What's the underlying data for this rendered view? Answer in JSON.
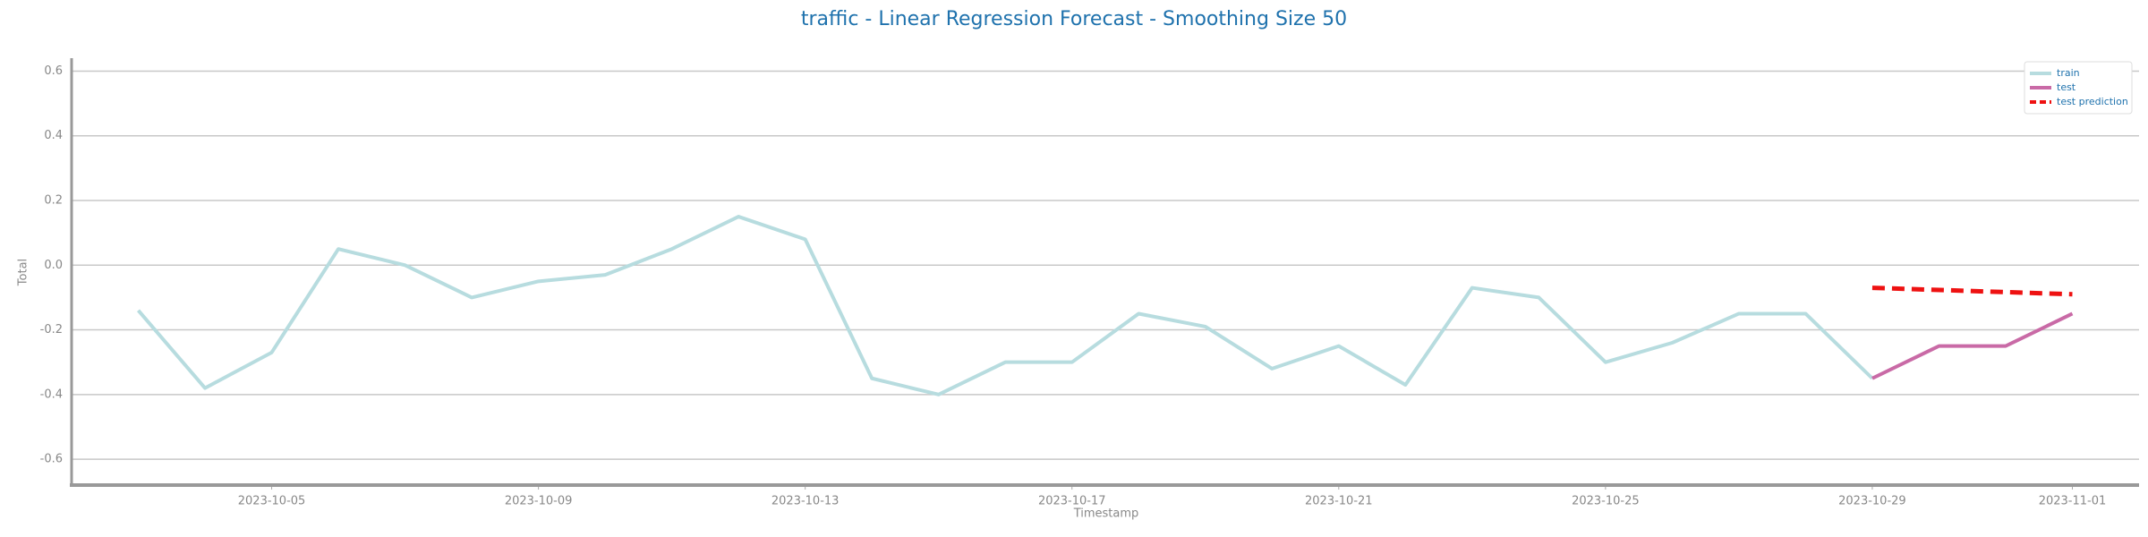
{
  "chart_data": {
    "type": "line",
    "title": "traffic - Linear Regression Forecast - Smoothing Size 50",
    "x_label": "Timestamp",
    "y_label": "Total",
    "series": [
      {
        "name": "train",
        "color": "#b7dcdf",
        "dash": false,
        "x": [
          "2023-10-03",
          "2023-10-04",
          "2023-10-05",
          "2023-10-06",
          "2023-10-07",
          "2023-10-08",
          "2023-10-09",
          "2023-10-10",
          "2023-10-11",
          "2023-10-12",
          "2023-10-13",
          "2023-10-14",
          "2023-10-15",
          "2023-10-16",
          "2023-10-17",
          "2023-10-18",
          "2023-10-19",
          "2023-10-20",
          "2023-10-21",
          "2023-10-22",
          "2023-10-23",
          "2023-10-24",
          "2023-10-25",
          "2023-10-26",
          "2023-10-27",
          "2023-10-28",
          "2023-10-29"
        ],
        "values": [
          -0.14,
          -0.38,
          -0.27,
          0.05,
          0.0,
          -0.1,
          -0.05,
          -0.03,
          0.05,
          0.15,
          0.08,
          -0.35,
          -0.4,
          -0.3,
          -0.3,
          -0.15,
          -0.19,
          -0.32,
          -0.25,
          -0.37,
          -0.07,
          -0.1,
          -0.3,
          -0.24,
          -0.15,
          -0.15,
          -0.35
        ]
      },
      {
        "name": "test",
        "color": "#c96aa6",
        "dash": false,
        "x": [
          "2023-10-29",
          "2023-10-30",
          "2023-10-31",
          "2023-11-01"
        ],
        "values": [
          -0.35,
          -0.25,
          -0.25,
          -0.15
        ]
      },
      {
        "name": "test prediction",
        "color": "#ee1111",
        "dash": true,
        "x": [
          "2023-10-29",
          "2023-11-01"
        ],
        "values": [
          -0.07,
          -0.09
        ]
      }
    ],
    "xlim": [
      "2023-10-02",
      "2023-11-02"
    ],
    "xticks": [
      "2023-10-05",
      "2023-10-09",
      "2023-10-13",
      "2023-10-17",
      "2023-10-21",
      "2023-10-25",
      "2023-10-29",
      "2023-11-01"
    ],
    "ylim": [
      -0.68,
      0.64
    ],
    "yticks": [
      -0.6,
      -0.4,
      -0.2,
      {
        "value": 0,
        "label": "0.0"
      },
      0.2,
      0.4,
      0.6
    ],
    "grid": true,
    "legend": "upper right"
  }
}
